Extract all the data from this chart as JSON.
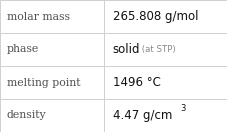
{
  "rows": [
    {
      "label": "molar mass",
      "value": "265.808 g/mol",
      "suffix": null,
      "superscript": null
    },
    {
      "label": "phase",
      "value": "solid",
      "suffix": " (at STP)",
      "superscript": null
    },
    {
      "label": "melting point",
      "value": "1496 °C",
      "suffix": null,
      "superscript": null
    },
    {
      "label": "density",
      "value": "4.47 g/cm",
      "suffix": null,
      "superscript": "3"
    }
  ],
  "col_split": 0.455,
  "background_color": "#ffffff",
  "border_color": "#d0d0d0",
  "label_fontsize": 7.8,
  "value_fontsize": 8.5,
  "suffix_fontsize": 6.2,
  "sup_fontsize": 6.0,
  "label_color": "#505050",
  "value_color": "#111111",
  "suffix_color": "#888888"
}
